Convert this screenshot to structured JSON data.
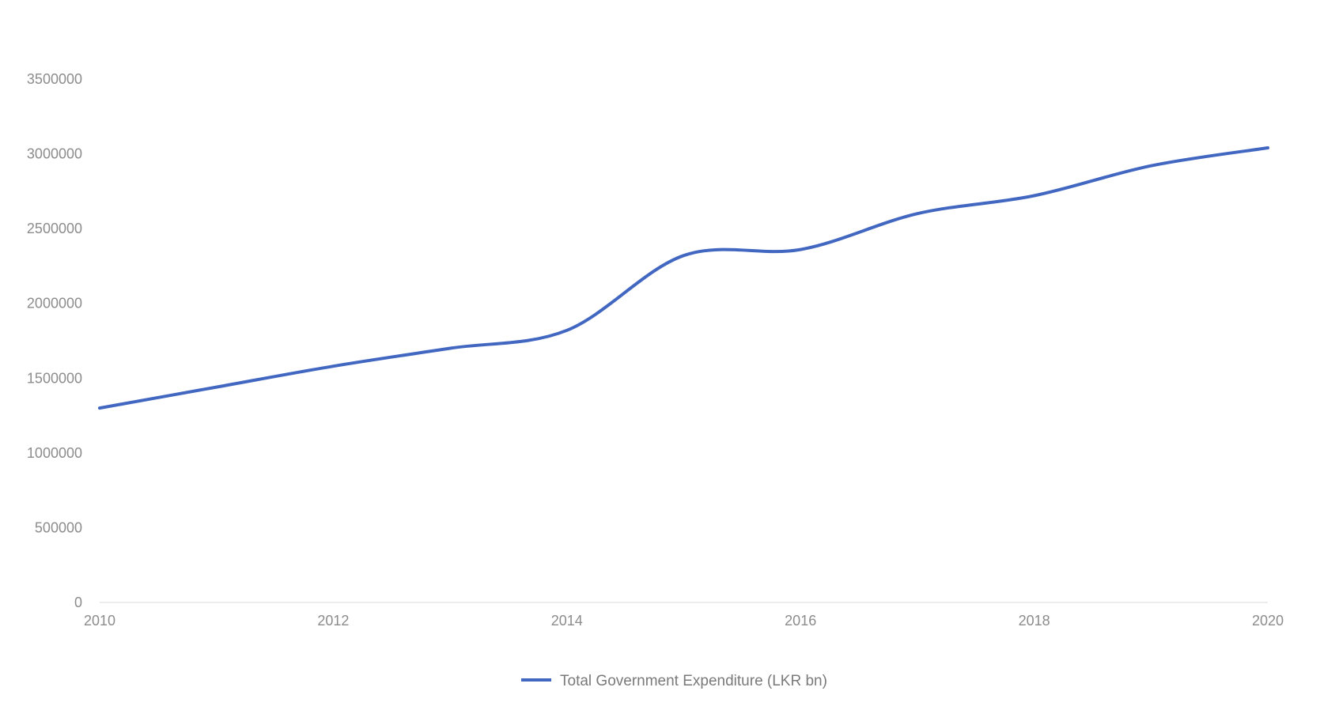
{
  "chart_data": {
    "type": "line",
    "title": "",
    "xlabel": "",
    "ylabel": "",
    "x": [
      2010,
      2011,
      2012,
      2013,
      2014,
      2015,
      2016,
      2017,
      2018,
      2019,
      2020
    ],
    "series": [
      {
        "name": "Total Government Expenditure (LKR bn)",
        "color": "#4267c1",
        "values": [
          1300000,
          1440000,
          1580000,
          1700000,
          1820000,
          2320000,
          2360000,
          2600000,
          2720000,
          2920000,
          3040000
        ]
      }
    ],
    "xlim": [
      2010,
      2020
    ],
    "ylim": [
      0,
      3500000
    ],
    "x_ticks": [
      "2010",
      "2012",
      "2014",
      "2016",
      "2018",
      "2020"
    ],
    "y_ticks": [
      "0",
      "500000",
      "1000000",
      "1500000",
      "2000000",
      "2500000",
      "3000000",
      "3500000"
    ],
    "grid": false,
    "legend_position": "bottom-center",
    "colors": {
      "line": "#4267c1",
      "axis": "#e6e6e6",
      "tick_text": "#8c8c8c"
    }
  }
}
